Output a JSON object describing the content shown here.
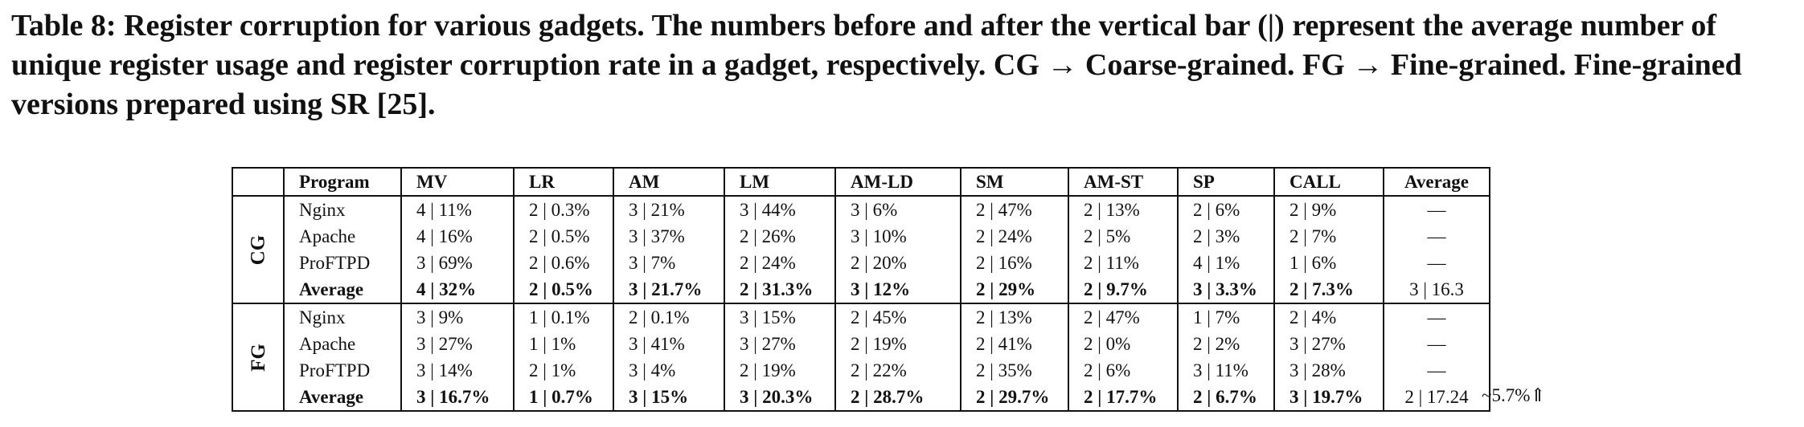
{
  "caption": "Table 8: Register corruption for various gadgets. The numbers before and after the vertical bar (|) represent the average number of unique register usage and register corruption rate in a gadget, respectively. CG → Coarse-grained. FG → Fine-grained. Fine-grained versions prepared using SR [25].",
  "table": {
    "headers": [
      "Program",
      "MV",
      "LR",
      "AM",
      "LM",
      "AM-LD",
      "SM",
      "AM-ST",
      "SP",
      "CALL",
      "Average"
    ],
    "groups": [
      {
        "label": "CG",
        "rows": [
          [
            "Nginx",
            "4 | 11%",
            "2 | 0.3%",
            "3 | 21%",
            "3 | 44%",
            "3 | 6%",
            "2 | 47%",
            "2 | 13%",
            "2 | 6%",
            "2 | 9%",
            "—"
          ],
          [
            "Apache",
            "4 | 16%",
            "2 | 0.5%",
            "3 | 37%",
            "2 | 26%",
            "3 | 10%",
            "2 | 24%",
            "2 | 5%",
            "2 | 3%",
            "2 | 7%",
            "—"
          ],
          [
            "ProFTPD",
            "3 | 69%",
            "2 | 0.6%",
            "3 | 7%",
            "2 | 24%",
            "2 | 20%",
            "2 | 16%",
            "2 | 11%",
            "4 | 1%",
            "1 | 6%",
            "—"
          ],
          [
            "Average",
            "4 | 32%",
            "2 | 0.5%",
            "3 | 21.7%",
            "2 | 31.3%",
            "3 | 12%",
            "2 | 29%",
            "2 | 9.7%",
            "3 | 3.3%",
            "2 | 7.3%",
            "3 | 16.3"
          ]
        ]
      },
      {
        "label": "FG",
        "rows": [
          [
            "Nginx",
            "3 | 9%",
            "1 | 0.1%",
            "2 | 0.1%",
            "3 | 15%",
            "2 | 45%",
            "2 | 13%",
            "2 | 47%",
            "1 | 7%",
            "2 | 4%",
            "—"
          ],
          [
            "Apache",
            "3 | 27%",
            "1 | 1%",
            "3 | 41%",
            "3 | 27%",
            "2 | 19%",
            "2 | 41%",
            "2 | 0%",
            "2 | 2%",
            "3 | 27%",
            "—"
          ],
          [
            "ProFTPD",
            "3 | 14%",
            "2 | 1%",
            "3 | 4%",
            "2 | 19%",
            "2 | 22%",
            "2 | 35%",
            "2 | 6%",
            "3 | 11%",
            "3 | 28%",
            "—"
          ],
          [
            "Average",
            "3 | 16.7%",
            "1 | 0.7%",
            "3 | 15%",
            "3 | 20.3%",
            "2 | 28.7%",
            "2 | 29.7%",
            "2 | 17.7%",
            "2 | 6.7%",
            "3 | 19.7%",
            "2 | 17.24"
          ]
        ]
      }
    ],
    "side_note": "~5.7%⇑"
  }
}
